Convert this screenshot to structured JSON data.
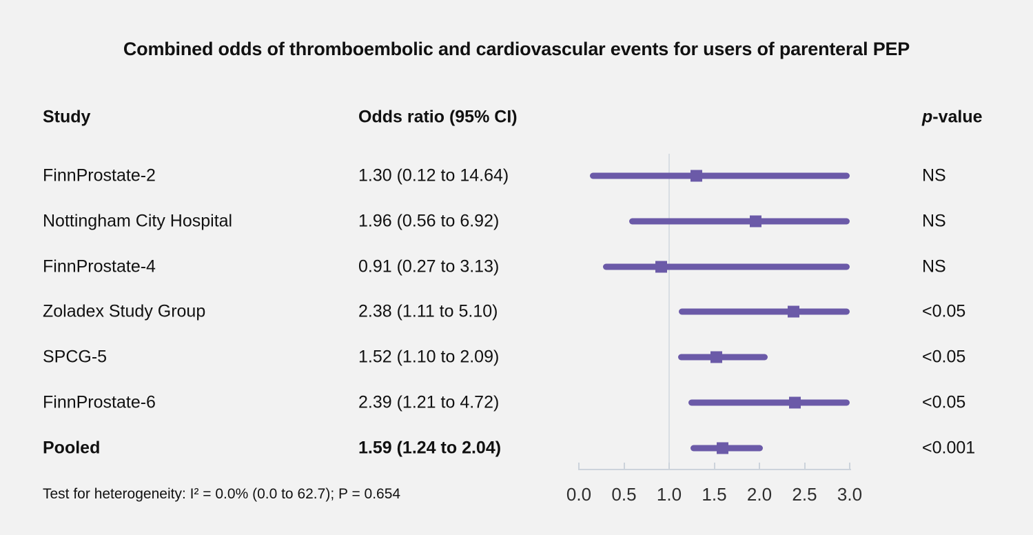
{
  "title": "Combined odds of thromboembolic and cardiovascular events for users of parenteral PEP",
  "header": {
    "study": "Study",
    "odds_ratio": "Odds ratio (95% CI)",
    "p_prefix": "p",
    "p_suffix": "-value"
  },
  "footnote": "Test for heterogeneity: I² = 0.0% (0.0 to 62.7); P = 0.654",
  "colors": {
    "background": "#f2f2f2",
    "text": "#111111",
    "marker_and_ci": "#6b5aa8",
    "axis": "#ccd3db",
    "reference_line": "#d8dde3"
  },
  "chart_data": {
    "type": "scatter",
    "variant": "forest-plot",
    "title": "Combined odds of thromboembolic and cardiovascular events for users of parenteral PEP",
    "x_axis": {
      "ticks": [
        0.0,
        0.5,
        1.0,
        1.5,
        2.0,
        2.5,
        3.0
      ],
      "tick_labels": [
        "0.0",
        "0.5",
        "1.0",
        "1.5",
        "2.0",
        "2.5",
        "3.0"
      ],
      "xlim": [
        0.0,
        3.0
      ],
      "reference_line_x": 1.0,
      "ci_clamped_at": 3.0
    },
    "legend": "none",
    "grid": "reference line at x=1.0 only",
    "rows": [
      {
        "study": "FinnProstate-2",
        "or": 1.3,
        "ci_low": 0.12,
        "ci_high": 14.64,
        "or_label": "1.30 (0.12 to 14.64)",
        "p_value": "NS",
        "emphasis": false
      },
      {
        "study": "Nottingham City Hospital",
        "or": 1.96,
        "ci_low": 0.56,
        "ci_high": 6.92,
        "or_label": "1.96 (0.56 to 6.92)",
        "p_value": "NS",
        "emphasis": false
      },
      {
        "study": "FinnProstate-4",
        "or": 0.91,
        "ci_low": 0.27,
        "ci_high": 3.13,
        "or_label": "0.91 (0.27 to 3.13)",
        "p_value": "NS",
        "emphasis": false
      },
      {
        "study": "Zoladex Study Group",
        "or": 2.38,
        "ci_low": 1.11,
        "ci_high": 5.1,
        "or_label": "2.38 (1.11 to 5.10)",
        "p_value": "<0.05",
        "emphasis": false
      },
      {
        "study": "SPCG-5",
        "or": 1.52,
        "ci_low": 1.1,
        "ci_high": 2.09,
        "or_label": "1.52 (1.10 to 2.09)",
        "p_value": "<0.05",
        "emphasis": false
      },
      {
        "study": "FinnProstate-6",
        "or": 2.39,
        "ci_low": 1.21,
        "ci_high": 4.72,
        "or_label": "2.39 (1.21 to 4.72)",
        "p_value": "<0.05",
        "emphasis": false
      },
      {
        "study": "Pooled",
        "or": 1.59,
        "ci_low": 1.24,
        "ci_high": 2.04,
        "or_label": "1.59 (1.24 to 2.04)",
        "p_value": "<0.001",
        "emphasis": true
      }
    ],
    "heterogeneity_note": "Test for heterogeneity: I² = 0.0% (0.0 to 62.7); P = 0.654"
  }
}
